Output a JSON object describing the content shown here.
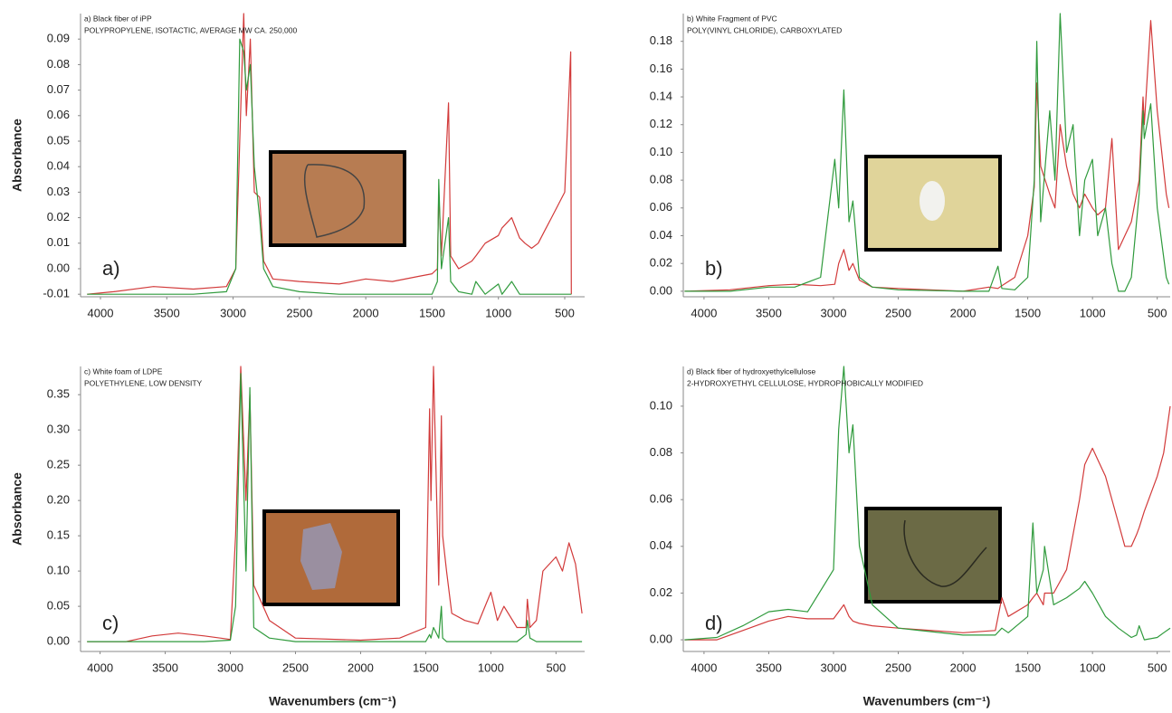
{
  "chart_data": [
    {
      "type": "line",
      "annotation": "a)",
      "ylabel": "Absorbance",
      "x": [
        4100,
        3900,
        3600,
        3300,
        3050,
        2980,
        2950,
        2920,
        2900,
        2870,
        2840,
        2800,
        2770,
        2700,
        2500,
        2200,
        2000,
        1800,
        1600,
        1500,
        1460,
        1450,
        1430,
        1376,
        1360,
        1300,
        1200,
        1170,
        1100,
        1000,
        973,
        900,
        840,
        800,
        750,
        700,
        650,
        600,
        550,
        500,
        455,
        450
      ],
      "series": [
        {
          "name": "a) Black fiber of iPP",
          "color": "#d23a3a",
          "values": [
            -0.01,
            -0.009,
            -0.007,
            -0.008,
            -0.007,
            0.0,
            0.05,
            0.1,
            0.06,
            0.09,
            0.03,
            0.028,
            0.003,
            -0.004,
            -0.005,
            -0.006,
            -0.004,
            -0.005,
            -0.003,
            -0.002,
            0.0,
            0.03,
            0.005,
            0.065,
            0.005,
            0.0,
            0.003,
            0.005,
            0.01,
            0.013,
            0.016,
            0.02,
            0.012,
            0.01,
            0.008,
            0.01,
            0.015,
            0.02,
            0.025,
            0.03,
            0.085,
            -0.01
          ]
        },
        {
          "name": "POLYPROPYLENE, ISOTACTIC, AVERAGE MW CA. 250,000",
          "color": "#2f9a3c",
          "values": [
            -0.01,
            -0.01,
            -0.01,
            -0.01,
            -0.009,
            0.0,
            0.09,
            0.085,
            0.07,
            0.08,
            0.04,
            0.02,
            0.0,
            -0.007,
            -0.009,
            -0.01,
            -0.01,
            -0.01,
            -0.01,
            -0.01,
            -0.005,
            0.035,
            0.0,
            0.02,
            -0.005,
            -0.009,
            -0.01,
            -0.005,
            -0.01,
            -0.006,
            -0.01,
            -0.005,
            -0.01,
            -0.01,
            -0.01,
            -0.01,
            -0.01,
            -0.01,
            -0.01,
            -0.01,
            -0.01,
            -0.01
          ]
        }
      ],
      "xlim": [
        4150,
        350
      ],
      "xticks": [
        4000,
        3500,
        3000,
        2500,
        2000,
        1500,
        1000,
        500
      ],
      "ylim": [
        -0.011,
        0.1
      ],
      "yticks": [
        -0.01,
        {
          "value": 0,
          "label": "0.00"
        },
        0.01,
        0.02,
        0.03,
        0.04,
        0.05,
        0.06,
        0.07,
        0.08,
        0.09
      ],
      "grid": false
    },
    {
      "type": "line",
      "annotation": "b)",
      "x": [
        4150,
        3800,
        3500,
        3300,
        3100,
        2990,
        2960,
        2920,
        2880,
        2850,
        2800,
        2700,
        2500,
        2000,
        1800,
        1730,
        1700,
        1600,
        1500,
        1450,
        1430,
        1400,
        1330,
        1290,
        1250,
        1200,
        1150,
        1100,
        1060,
        1000,
        960,
        900,
        850,
        800,
        750,
        700,
        640,
        610,
        600,
        550,
        500,
        430,
        410
      ],
      "series": [
        {
          "name": "b) White Fragment of PVC",
          "color": "#d23a3a",
          "values": [
            0.0,
            0.001,
            0.004,
            0.005,
            0.004,
            0.005,
            0.02,
            0.03,
            0.015,
            0.02,
            0.008,
            0.003,
            0.002,
            0.0,
            0.003,
            0.002,
            0.004,
            0.01,
            0.04,
            0.075,
            0.15,
            0.09,
            0.07,
            0.06,
            0.12,
            0.09,
            0.07,
            0.06,
            0.07,
            0.06,
            0.055,
            0.06,
            0.11,
            0.03,
            0.04,
            0.05,
            0.08,
            0.14,
            0.12,
            0.195,
            0.13,
            0.07,
            0.06
          ]
        },
        {
          "name": "POLY(VINYL CHLORIDE), CARBOXYLATED",
          "color": "#2f9a3c",
          "values": [
            0.0,
            0.0,
            0.003,
            0.003,
            0.01,
            0.095,
            0.06,
            0.145,
            0.05,
            0.065,
            0.01,
            0.003,
            0.001,
            0.0,
            0.0,
            0.018,
            0.002,
            0.001,
            0.01,
            0.08,
            0.18,
            0.05,
            0.13,
            0.08,
            0.2,
            0.1,
            0.12,
            0.04,
            0.08,
            0.095,
            0.04,
            0.06,
            0.02,
            0.0,
            0.0,
            0.01,
            0.07,
            0.13,
            0.11,
            0.135,
            0.06,
            0.01,
            0.005
          ]
        }
      ],
      "xlim": [
        4160,
        400
      ],
      "xticks": [
        4000,
        3500,
        3000,
        2500,
        2000,
        1500,
        1000,
        500
      ],
      "ylim": [
        -0.004,
        0.2
      ],
      "yticks": [
        {
          "value": 0,
          "label": "0.00"
        },
        0.02,
        0.04,
        0.06,
        0.08,
        {
          "value": 0.1,
          "label": "0.10"
        },
        0.12,
        0.14,
        0.16,
        0.18
      ],
      "grid": false
    },
    {
      "type": "line",
      "annotation": "c)",
      "ylabel": "Absorbance",
      "xlabel": "Wavenumbers (cm⁻¹)",
      "x": [
        4100,
        3800,
        3600,
        3400,
        3200,
        3000,
        2960,
        2920,
        2880,
        2850,
        2820,
        2700,
        2500,
        2000,
        1700,
        1500,
        1470,
        1460,
        1440,
        1400,
        1380,
        1370,
        1340,
        1300,
        1200,
        1100,
        1000,
        950,
        900,
        800,
        730,
        720,
        700,
        650,
        600,
        500,
        450,
        400,
        350,
        300
      ],
      "series": [
        {
          "name": "c) White foam of LDPE",
          "color": "#d23a3a",
          "values": [
            0.0,
            0.0,
            0.008,
            0.012,
            0.008,
            0.003,
            0.15,
            0.39,
            0.2,
            0.35,
            0.08,
            0.03,
            0.005,
            0.002,
            0.005,
            0.02,
            0.33,
            0.2,
            0.39,
            0.08,
            0.32,
            0.15,
            0.1,
            0.04,
            0.03,
            0.025,
            0.07,
            0.03,
            0.05,
            0.02,
            0.02,
            0.06,
            0.02,
            0.03,
            0.1,
            0.12,
            0.1,
            0.14,
            0.11,
            0.04
          ]
        },
        {
          "name": "POLYETHYLENE, LOW DENSITY",
          "color": "#2f9a3c",
          "values": [
            0.0,
            0.0,
            0.0,
            0.0,
            0.0,
            0.002,
            0.05,
            0.38,
            0.1,
            0.36,
            0.02,
            0.005,
            0.0,
            0.0,
            0.0,
            0.0,
            0.01,
            0.005,
            0.02,
            0.005,
            0.05,
            0.005,
            0.0,
            0.0,
            0.0,
            0.0,
            0.0,
            0.0,
            0.0,
            0.0,
            0.01,
            0.03,
            0.005,
            0.0,
            0.0,
            0.0,
            0.0,
            0.0,
            0.0,
            0.0
          ]
        }
      ],
      "xlim": [
        4150,
        280
      ],
      "xticks": [
        4000,
        3500,
        3000,
        2500,
        2000,
        1500,
        1000,
        500
      ],
      "ylim": [
        -0.014,
        0.39
      ],
      "yticks": [
        {
          "value": 0,
          "label": "0.00"
        },
        0.05,
        {
          "value": 0.1,
          "label": "0.10"
        },
        0.15,
        {
          "value": 0.2,
          "label": "0.20"
        },
        0.25,
        {
          "value": 0.3,
          "label": "0.30"
        },
        0.35
      ],
      "grid": false
    },
    {
      "type": "line",
      "annotation": "d)",
      "xlabel": "Wavenumbers (cm⁻¹)",
      "x": [
        4150,
        3900,
        3700,
        3500,
        3350,
        3200,
        3000,
        2960,
        2920,
        2880,
        2850,
        2800,
        2700,
        2500,
        2000,
        1750,
        1700,
        1650,
        1500,
        1460,
        1430,
        1380,
        1370,
        1300,
        1200,
        1100,
        1060,
        1000,
        900,
        800,
        750,
        700,
        660,
        640,
        600,
        500,
        450,
        400
      ],
      "series": [
        {
          "name": "d) Black fiber of hydroxyethylcellulose",
          "color": "#d23a3a",
          "values": [
            0.0,
            0.0,
            0.004,
            0.008,
            0.01,
            0.009,
            0.009,
            0.012,
            0.015,
            0.01,
            0.008,
            0.007,
            0.006,
            0.005,
            0.003,
            0.004,
            0.018,
            0.01,
            0.015,
            0.018,
            0.02,
            0.015,
            0.02,
            0.02,
            0.03,
            0.06,
            0.075,
            0.082,
            0.07,
            0.05,
            0.04,
            0.04,
            0.045,
            0.048,
            0.055,
            0.07,
            0.08,
            0.1
          ]
        },
        {
          "name": "2-HYDROXYETHYL CELLULOSE, HYDROPHOBICALLY MODIFIED",
          "color": "#2f9a3c",
          "values": [
            0.0,
            0.001,
            0.006,
            0.012,
            0.013,
            0.012,
            0.03,
            0.09,
            0.117,
            0.08,
            0.092,
            0.04,
            0.015,
            0.005,
            0.002,
            0.002,
            0.005,
            0.003,
            0.01,
            0.05,
            0.02,
            0.03,
            0.04,
            0.015,
            0.018,
            0.022,
            0.025,
            0.02,
            0.01,
            0.005,
            0.003,
            0.001,
            0.002,
            0.006,
            0.0,
            0.001,
            0.003,
            0.005
          ]
        }
      ],
      "xlim": [
        4160,
        400
      ],
      "xticks": [
        4000,
        3500,
        3000,
        2500,
        2000,
        1500,
        1000,
        500
      ],
      "ylim": [
        -0.005,
        0.117
      ],
      "yticks": [
        {
          "value": 0,
          "label": "0.00"
        },
        0.02,
        0.04,
        0.06,
        0.08,
        {
          "value": 0.1,
          "label": "0.10"
        }
      ],
      "grid": false
    }
  ]
}
